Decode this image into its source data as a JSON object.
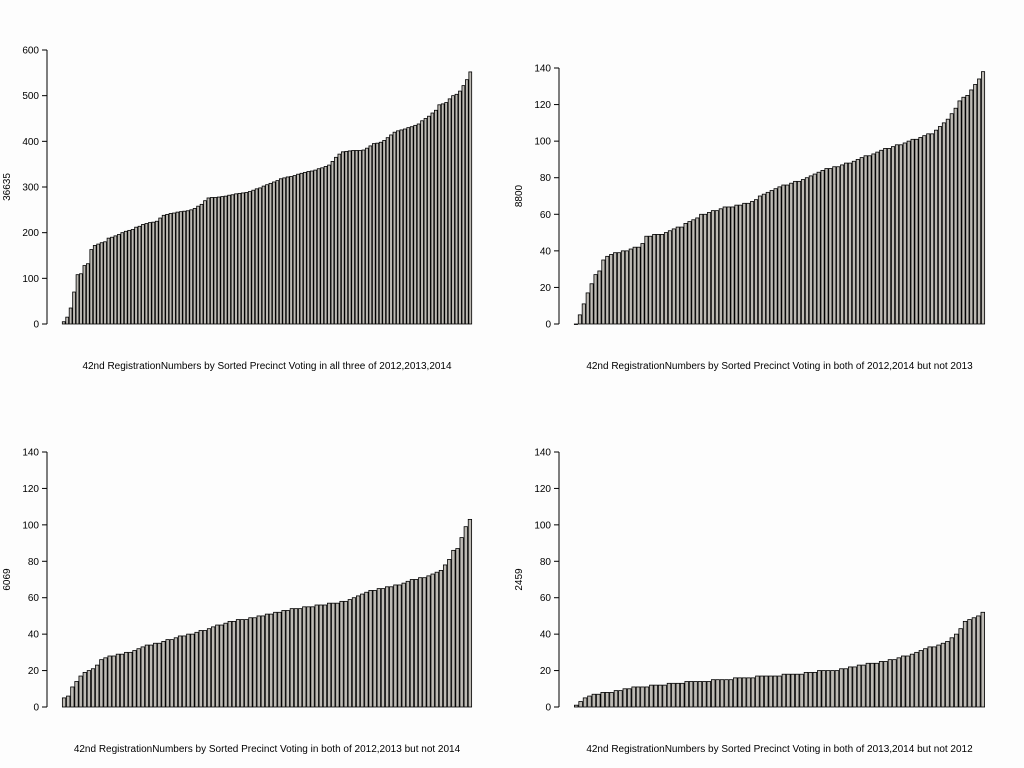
{
  "chart_data": [
    {
      "type": "bar",
      "title": "",
      "xlabel": "42nd RegistrationNumbers by Sorted Precinct Voting in all three of 2012,2013,2014",
      "ylabel": "36635",
      "ylim": [
        0,
        600
      ],
      "yticks": [
        0,
        100,
        200,
        300,
        400,
        500,
        600
      ],
      "bar_color": "#bdbab4",
      "values": [
        5,
        15,
        35,
        70,
        108,
        110,
        128,
        132,
        163,
        172,
        175,
        178,
        180,
        188,
        190,
        193,
        196,
        200,
        203,
        205,
        207,
        212,
        214,
        218,
        220,
        222,
        223,
        225,
        232,
        238,
        240,
        242,
        243,
        245,
        246,
        247,
        248,
        250,
        253,
        258,
        262,
        270,
        276,
        277,
        277,
        278,
        279,
        280,
        282,
        283,
        285,
        286,
        287,
        288,
        290,
        293,
        296,
        298,
        302,
        305,
        308,
        311,
        314,
        318,
        320,
        322,
        323,
        325,
        328,
        330,
        332,
        334,
        335,
        337,
        340,
        342,
        345,
        348,
        356,
        365,
        372,
        377,
        378,
        379,
        380,
        380,
        380,
        381,
        385,
        390,
        395,
        396,
        398,
        402,
        408,
        414,
        420,
        423,
        425,
        427,
        430,
        432,
        435,
        438,
        445,
        450,
        455,
        462,
        468,
        480,
        482,
        485,
        493,
        500,
        503,
        510,
        522,
        535,
        552
      ]
    },
    {
      "type": "bar",
      "title": "",
      "xlabel": "42nd RegistrationNumbers by Sorted Precinct Voting in both of 2012,2014 but not 2013",
      "ylabel": "8800",
      "ylim": [
        0,
        140
      ],
      "yticks": [
        0,
        20,
        40,
        60,
        80,
        100,
        120,
        140
      ],
      "bar_color": "#bdbab4",
      "values": [
        0,
        5,
        11,
        17,
        22,
        27,
        29,
        35,
        37,
        38,
        39,
        39,
        40,
        40,
        41,
        42,
        42,
        44,
        48,
        48,
        49,
        49,
        49,
        50,
        51,
        52,
        53,
        53,
        55,
        56,
        57,
        58,
        60,
        60,
        61,
        62,
        62,
        63,
        64,
        64,
        64,
        65,
        65,
        66,
        66,
        67,
        68,
        70,
        71,
        72,
        73,
        74,
        75,
        76,
        76,
        77,
        78,
        78,
        79,
        80,
        81,
        82,
        83,
        84,
        85,
        85,
        86,
        86,
        87,
        88,
        88,
        89,
        90,
        91,
        92,
        92,
        93,
        94,
        95,
        96,
        96,
        97,
        98,
        98,
        99,
        100,
        101,
        101,
        102,
        103,
        104,
        104,
        106,
        108,
        110,
        112,
        115,
        118,
        122,
        124,
        125,
        128,
        131,
        134,
        138
      ]
    },
    {
      "type": "bar",
      "title": "",
      "xlabel": "42nd RegistrationNumbers by Sorted Precinct Voting in both of 2012,2013 but not 2014",
      "ylabel": "6069",
      "ylim": [
        0,
        140
      ],
      "yticks": [
        0,
        20,
        40,
        60,
        80,
        100,
        120,
        140
      ],
      "bar_color": "#bdbab4",
      "values": [
        5,
        6,
        11,
        14,
        17,
        19,
        20,
        21,
        23,
        26,
        27,
        28,
        28,
        29,
        29,
        30,
        30,
        31,
        32,
        33,
        34,
        34,
        35,
        35,
        36,
        37,
        37,
        38,
        39,
        39,
        40,
        40,
        41,
        42,
        42,
        43,
        44,
        45,
        45,
        46,
        47,
        47,
        48,
        48,
        48,
        49,
        49,
        50,
        50,
        51,
        51,
        52,
        52,
        53,
        53,
        54,
        54,
        54,
        55,
        55,
        55,
        56,
        56,
        56,
        57,
        57,
        57,
        58,
        58,
        59,
        60,
        61,
        62,
        63,
        64,
        64,
        65,
        65,
        66,
        66,
        67,
        67,
        68,
        69,
        70,
        70,
        71,
        71,
        72,
        73,
        74,
        75,
        78,
        81,
        86,
        87,
        93,
        99,
        103
      ]
    },
    {
      "type": "bar",
      "title": "",
      "xlabel": "42nd RegistrationNumbers by Sorted Precinct Voting in both of 2013,2014 but not 2012",
      "ylabel": "2459",
      "ylim": [
        0,
        140
      ],
      "yticks": [
        0,
        20,
        40,
        60,
        80,
        100,
        120,
        140
      ],
      "bar_color": "#bdbab4",
      "values": [
        1,
        3,
        5,
        6,
        7,
        7,
        8,
        8,
        8,
        9,
        9,
        10,
        10,
        11,
        11,
        11,
        11,
        12,
        12,
        12,
        12,
        13,
        13,
        13,
        13,
        14,
        14,
        14,
        14,
        14,
        14,
        15,
        15,
        15,
        15,
        15,
        16,
        16,
        16,
        16,
        16,
        17,
        17,
        17,
        17,
        17,
        17,
        18,
        18,
        18,
        18,
        18,
        19,
        19,
        19,
        20,
        20,
        20,
        20,
        20,
        21,
        21,
        22,
        22,
        23,
        23,
        24,
        24,
        24,
        25,
        25,
        26,
        26,
        27,
        28,
        28,
        29,
        30,
        31,
        32,
        33,
        33,
        34,
        35,
        36,
        38,
        40,
        43,
        47,
        48,
        49,
        50,
        52
      ]
    }
  ]
}
